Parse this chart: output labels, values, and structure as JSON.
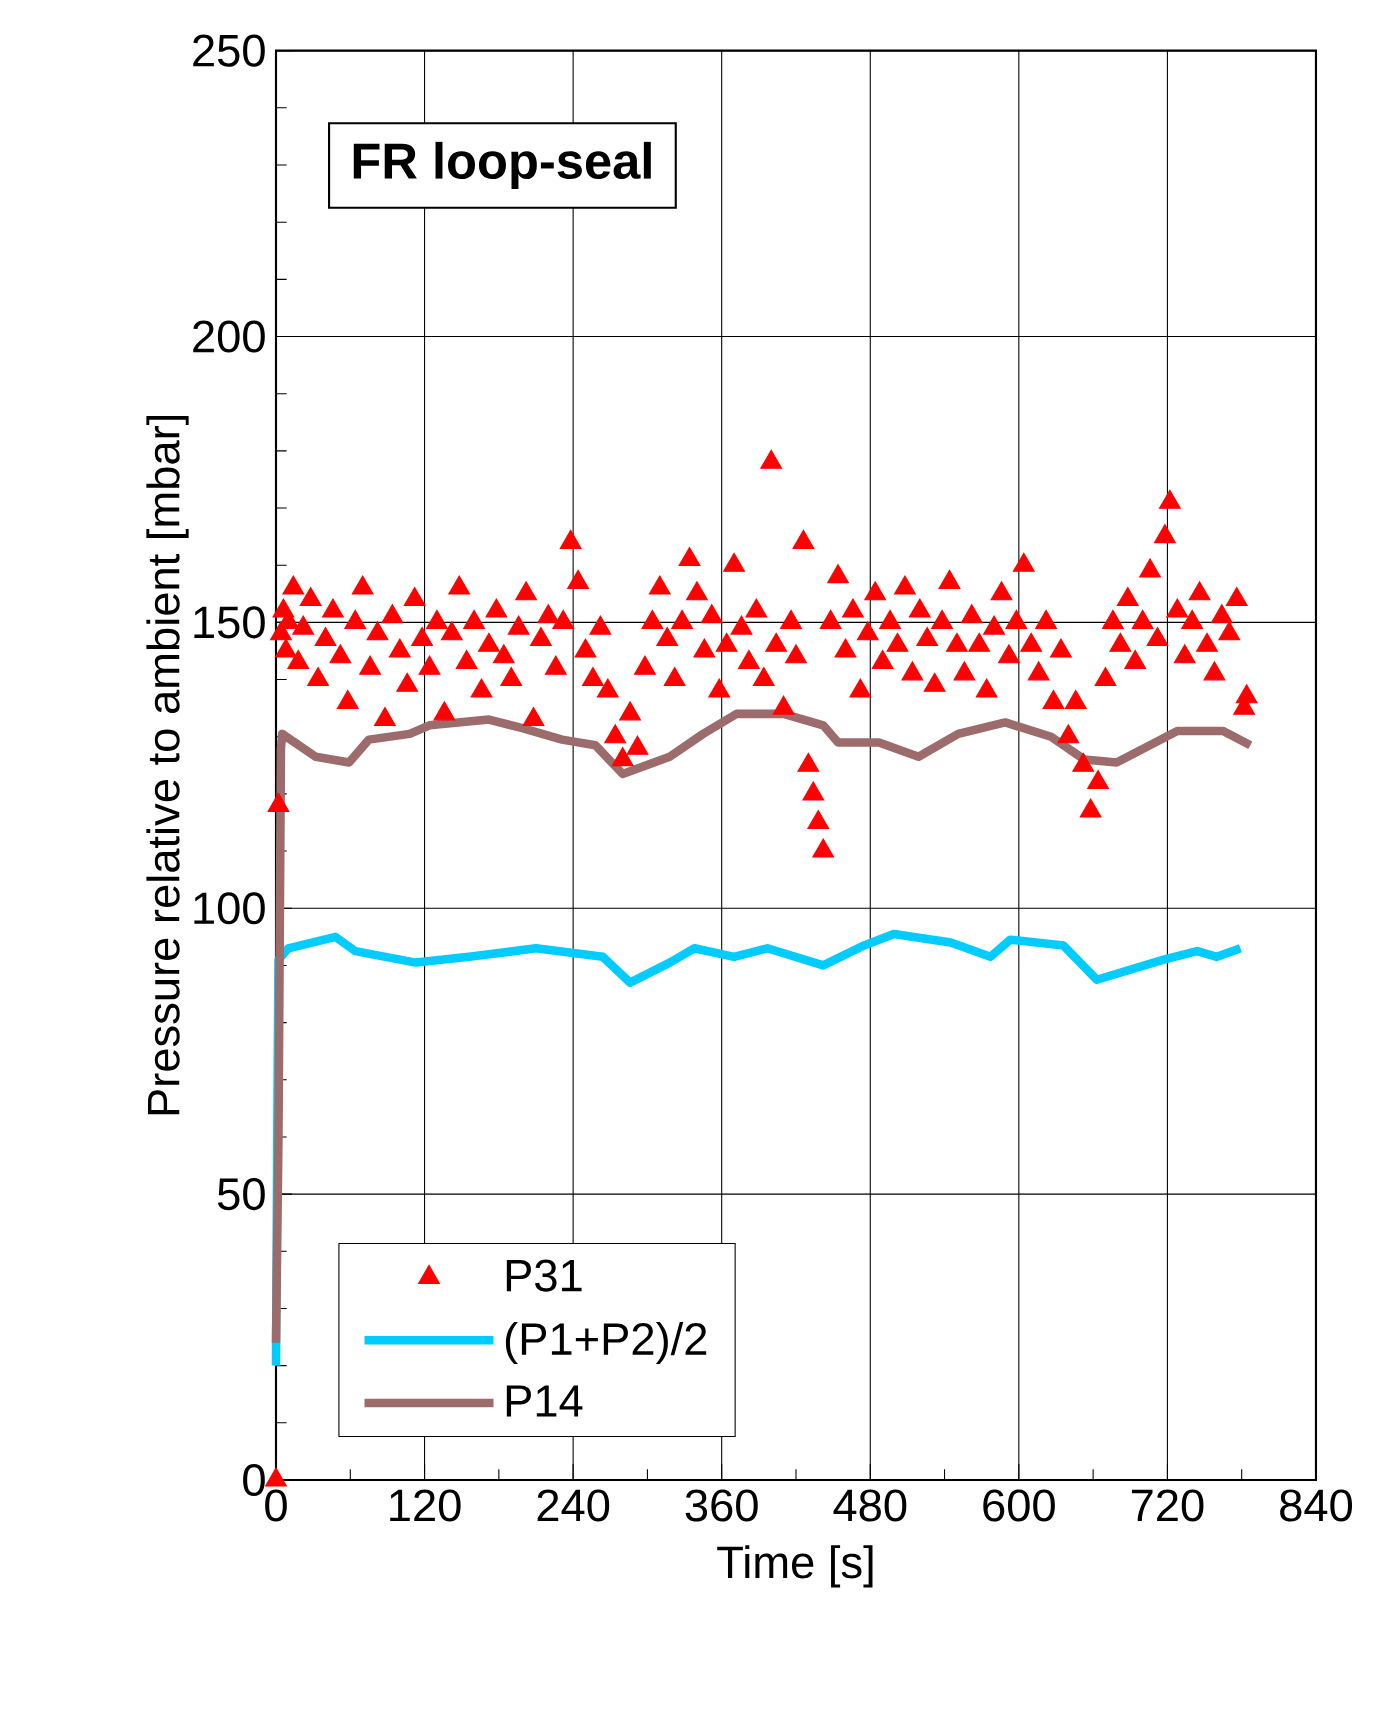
{
  "chart_data": {
    "type": "line",
    "title": "FR loop-seal",
    "xlabel": "Time [s]",
    "ylabel": "Pressure relative to ambient [mbar]",
    "xlim": [
      0,
      840
    ],
    "xticks": [
      0,
      120,
      240,
      360,
      480,
      600,
      720,
      840
    ],
    "ylim": [
      0,
      250
    ],
    "yticks": [
      0,
      50,
      100,
      150,
      200,
      250
    ],
    "grid": true,
    "legend": "bottom left",
    "line_style": "solid",
    "series": [
      {
        "name": "P31",
        "type": "scatter",
        "marker": "triangle",
        "color": "#ff0000",
        "x": [
          0,
          2,
          4,
          6,
          8,
          10,
          14,
          18,
          22,
          28,
          34,
          40,
          46,
          52,
          58,
          64,
          70,
          76,
          82,
          88,
          94,
          100,
          106,
          112,
          118,
          124,
          130,
          136,
          142,
          148,
          154,
          160,
          166,
          172,
          178,
          184,
          190,
          196,
          202,
          208,
          214,
          220,
          226,
          232,
          238,
          244,
          250,
          256,
          262,
          268,
          274,
          280,
          286,
          292,
          298,
          304,
          310,
          316,
          322,
          328,
          334,
          340,
          346,
          352,
          358,
          364,
          370,
          376,
          382,
          388,
          394,
          400,
          404,
          410,
          416,
          420,
          426,
          430,
          434,
          438,
          442,
          448,
          454,
          460,
          466,
          472,
          478,
          484,
          490,
          496,
          502,
          508,
          514,
          520,
          526,
          532,
          538,
          544,
          550,
          556,
          562,
          568,
          574,
          580,
          586,
          592,
          598,
          604,
          610,
          616,
          622,
          628,
          634,
          640,
          646,
          652,
          658,
          664,
          670,
          676,
          682,
          688,
          694,
          700,
          706,
          712,
          718,
          722,
          728,
          734,
          740,
          746,
          752,
          758,
          764,
          770,
          776,
          782,
          784
        ],
        "values": [
          0,
          118,
          148,
          152,
          145,
          150,
          156,
          143,
          149,
          154,
          140,
          147,
          152,
          144,
          136,
          150,
          156,
          142,
          148,
          133,
          151,
          145,
          139,
          154,
          147,
          142,
          150,
          134,
          148,
          156,
          143,
          150,
          138,
          146,
          152,
          144,
          140,
          149,
          155,
          133,
          147,
          151,
          142,
          150,
          164,
          157,
          145,
          140,
          149,
          138,
          130,
          126,
          134,
          128,
          142,
          150,
          156,
          147,
          140,
          150,
          161,
          155,
          145,
          151,
          138,
          146,
          160,
          149,
          143,
          152,
          140,
          178,
          146,
          135,
          150,
          144,
          164,
          125,
          120,
          115,
          110,
          150,
          158,
          145,
          152,
          138,
          148,
          155,
          143,
          150,
          146,
          156,
          141,
          152,
          147,
          139,
          150,
          157,
          146,
          141,
          151,
          146,
          138,
          149,
          155,
          144,
          150,
          160,
          146,
          141,
          150,
          136,
          145,
          130,
          136,
          125,
          117,
          122,
          140,
          150,
          146,
          154,
          143,
          150,
          159,
          147,
          165,
          171,
          152,
          144,
          150,
          155,
          146,
          141,
          151,
          148,
          154,
          135,
          137
        ]
      },
      {
        "name": "(P1+P2)/2",
        "marker": "none",
        "color": "#00ccff",
        "x": [
          0,
          1,
          2,
          10,
          48,
          64,
          113,
          156,
          210,
          264,
          286,
          318,
          338,
          370,
          397,
          442,
          475,
          499,
          545,
          577,
          593,
          636,
          663,
          717,
          744,
          760,
          779
        ],
        "values": [
          20,
          60,
          91,
          93,
          95,
          92.5,
          90.5,
          91.5,
          93,
          91.5,
          87,
          90.5,
          93,
          91.5,
          93,
          90,
          93.5,
          95.5,
          94,
          91.5,
          94.5,
          93.5,
          87.5,
          91,
          92.5,
          91.5,
          93
        ]
      },
      {
        "name": "P14",
        "marker": "none",
        "color": "#9c6b6b",
        "x": [
          0,
          2,
          4,
          5,
          32,
          59,
          75,
          108,
          124,
          172,
          199,
          231,
          258,
          280,
          318,
          345,
          372,
          410,
          442,
          454,
          487,
          519,
          551,
          589,
          626,
          653,
          679,
          728,
          765,
          787
        ],
        "values": [
          24,
          60,
          128,
          130.5,
          126.5,
          125.5,
          129.5,
          130.5,
          132,
          133,
          131.5,
          129.5,
          128.5,
          123.5,
          126.5,
          130.5,
          134,
          134,
          132,
          129,
          129,
          126.5,
          130.5,
          132.5,
          130,
          126,
          125.5,
          131,
          131,
          128.5
        ]
      }
    ]
  }
}
